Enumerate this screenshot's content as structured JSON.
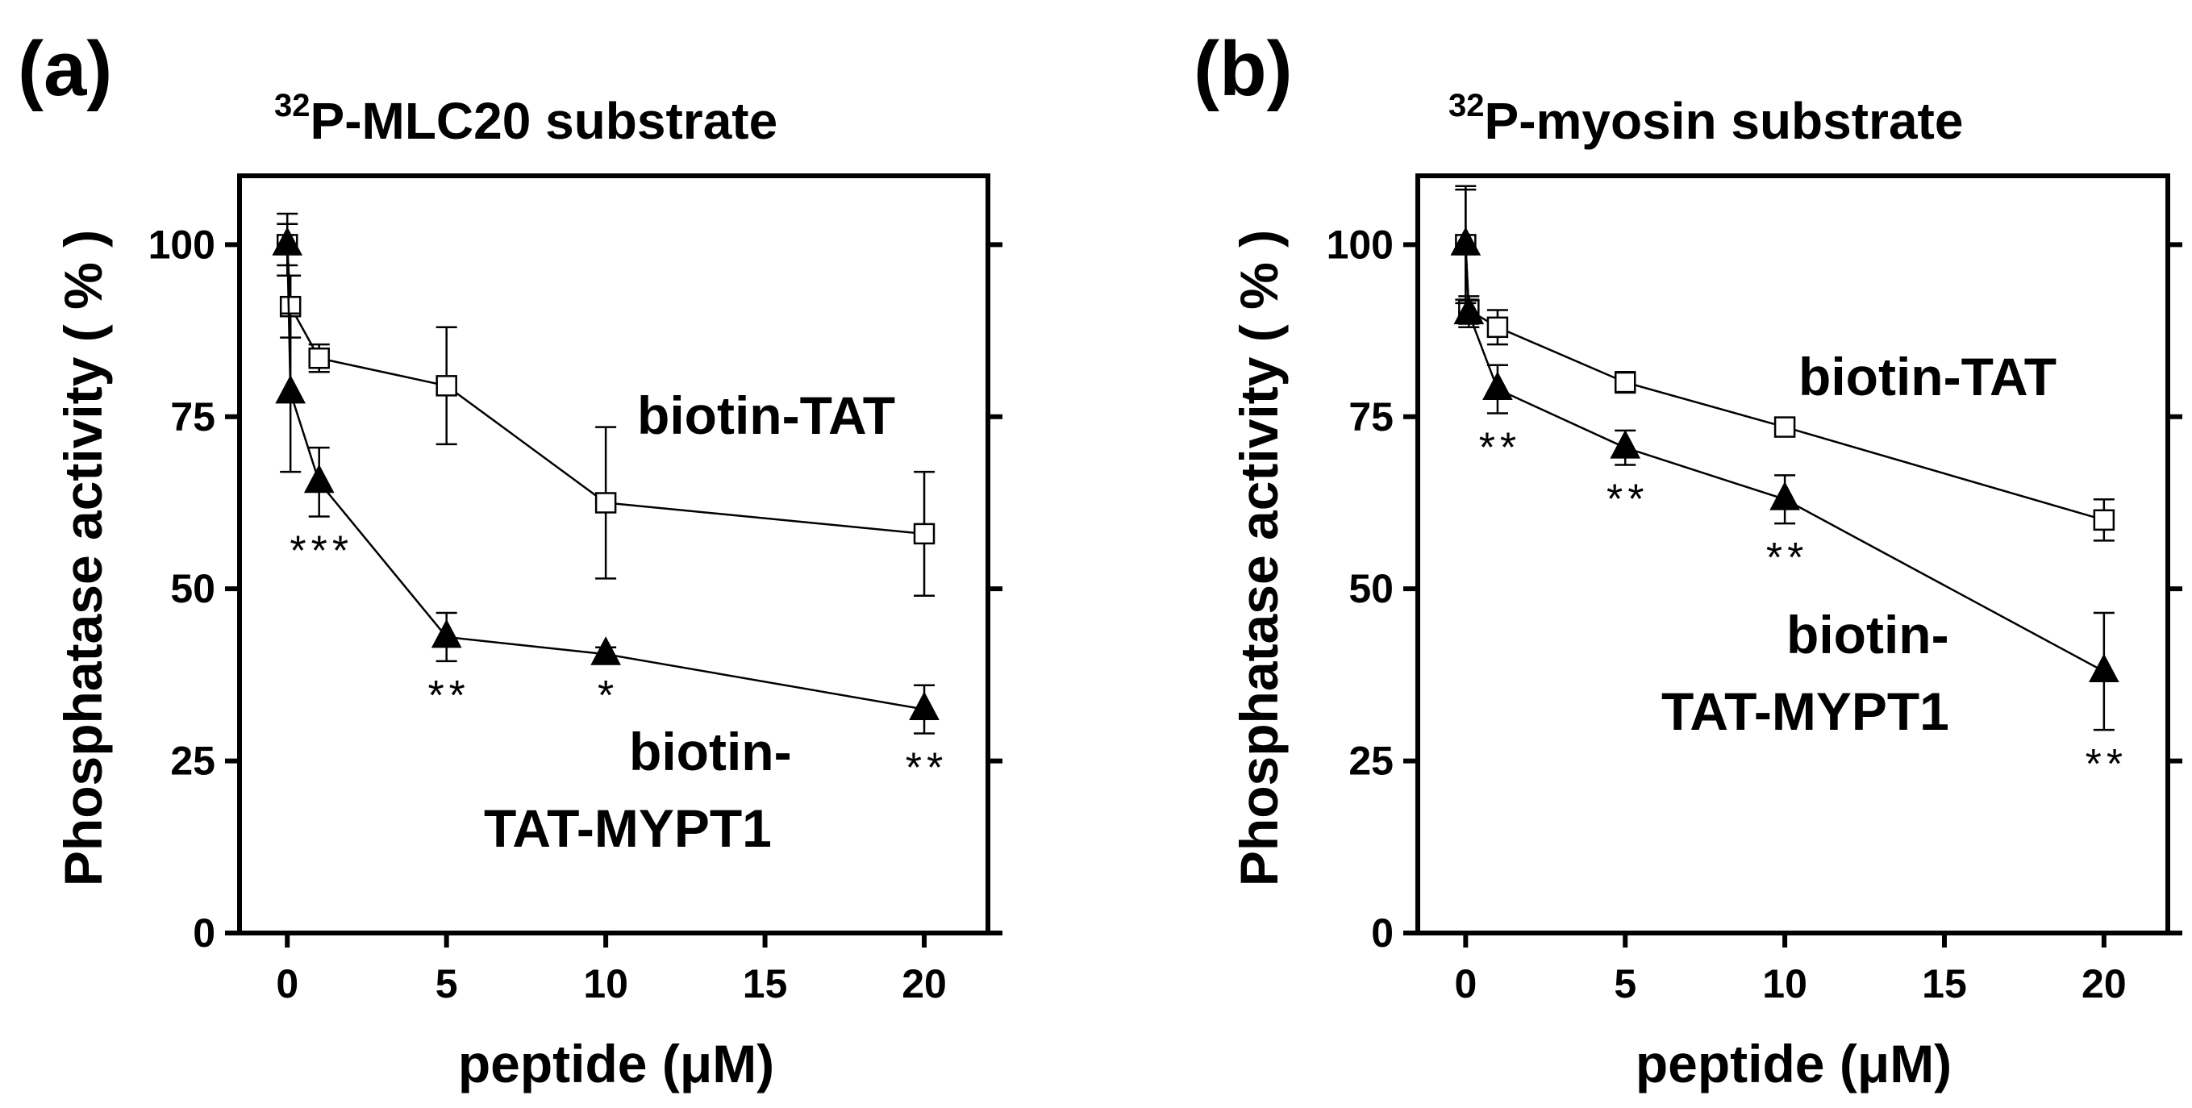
{
  "chart_data": [
    {
      "type": "line",
      "panel_label": "(a)",
      "title_superscript": "32",
      "title": "P-MLC20 substrate",
      "xlabel": "peptide (μM)",
      "ylabel": "Phosphatase activity ( % )",
      "xlim": [
        -1.5,
        22
      ],
      "ylim": [
        0,
        110
      ],
      "xticks": [
        0,
        5,
        10,
        15,
        20
      ],
      "yticks": [
        0,
        25,
        50,
        75,
        100
      ],
      "series": [
        {
          "name": "biotin-TAT",
          "label_lines": [
            "biotin-TAT"
          ],
          "marker": "open-square",
          "x": [
            0,
            0.1,
            1,
            5,
            10,
            20
          ],
          "y": [
            100,
            91,
            83.5,
            79.5,
            62.5,
            58
          ],
          "err": [
            3,
            4.5,
            2,
            8.5,
            11,
            9
          ],
          "significance": [
            "",
            "",
            "",
            "",
            "",
            ""
          ]
        },
        {
          "name": "biotin-TAT-MYPT1",
          "label_lines": [
            "biotin-",
            "TAT-MYPT1"
          ],
          "marker": "filled-triangle",
          "x": [
            0,
            0.1,
            1,
            5,
            10,
            20
          ],
          "y": [
            100,
            78.5,
            65.5,
            43,
            40.5,
            32.5
          ],
          "err": [
            4.5,
            11.5,
            5,
            3.5,
            1,
            3.5
          ],
          "significance": [
            "",
            "",
            "***",
            "**",
            "*",
            "**"
          ]
        }
      ]
    },
    {
      "type": "line",
      "panel_label": "(b)",
      "title_superscript": "32",
      "title": "P-myosin substrate",
      "xlabel": "peptide (μM)",
      "ylabel": "Phosphatase activity ( % )",
      "xlim": [
        -1.5,
        22
      ],
      "ylim": [
        0,
        110
      ],
      "xticks": [
        0,
        5,
        10,
        15,
        20
      ],
      "yticks": [
        0,
        25,
        50,
        75,
        100
      ],
      "series": [
        {
          "name": "biotin-TAT",
          "label_lines": [
            "biotin-TAT"
          ],
          "marker": "open-square",
          "x": [
            0,
            0.1,
            1,
            5,
            10,
            20
          ],
          "y": [
            100,
            90.5,
            88,
            80,
            73.5,
            60
          ],
          "err": [
            8,
            2,
            2.5,
            1.5,
            1,
            3
          ],
          "significance": [
            "",
            "",
            "",
            "",
            "",
            ""
          ]
        },
        {
          "name": "biotin-TAT-MYPT1",
          "label_lines": [
            "biotin-",
            "TAT-MYPT1"
          ],
          "marker": "filled-triangle",
          "x": [
            0,
            0.1,
            1,
            5,
            10,
            20
          ],
          "y": [
            100,
            90,
            79,
            70.5,
            63,
            38
          ],
          "err": [
            8.5,
            2,
            3.5,
            2.5,
            3.5,
            8.5
          ],
          "significance": [
            "",
            "",
            "**",
            "**",
            "**",
            "**"
          ]
        }
      ]
    }
  ]
}
